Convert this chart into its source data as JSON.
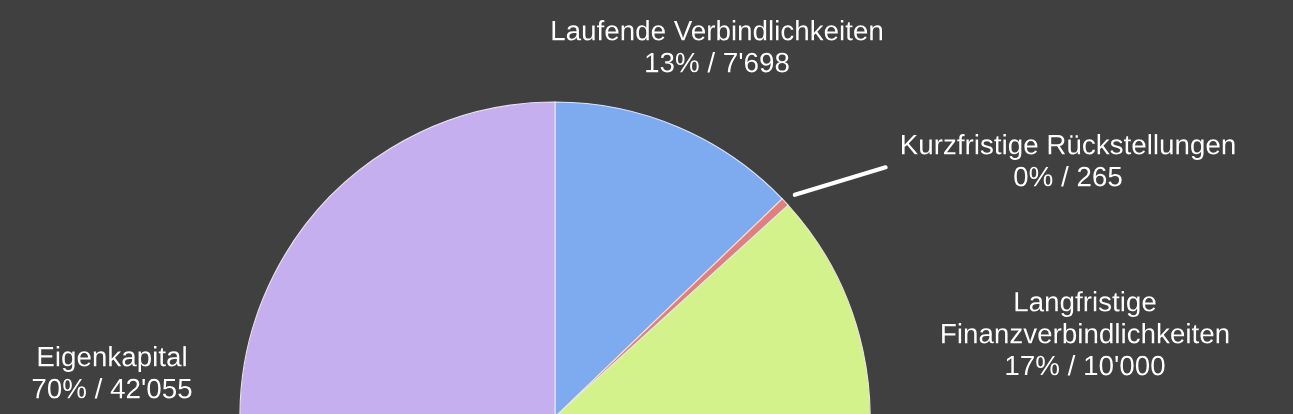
{
  "chart_data": {
    "type": "pie",
    "categories": [
      "Laufende Verbindlichkeiten",
      "Kurzfristige Rückstellungen",
      "Langfristige\nFinanzverbindlichkeiten",
      "Eigenkapital"
    ],
    "values": [
      7698,
      265,
      10000,
      42055
    ],
    "colors": [
      "#7eaaf0",
      "#e07f7f",
      "#d4f28c",
      "#c6afee"
    ],
    "value_labels": [
      "13% / 7'698",
      "0% / 265",
      "17% / 10'000",
      "70% / 42'055"
    ]
  }
}
